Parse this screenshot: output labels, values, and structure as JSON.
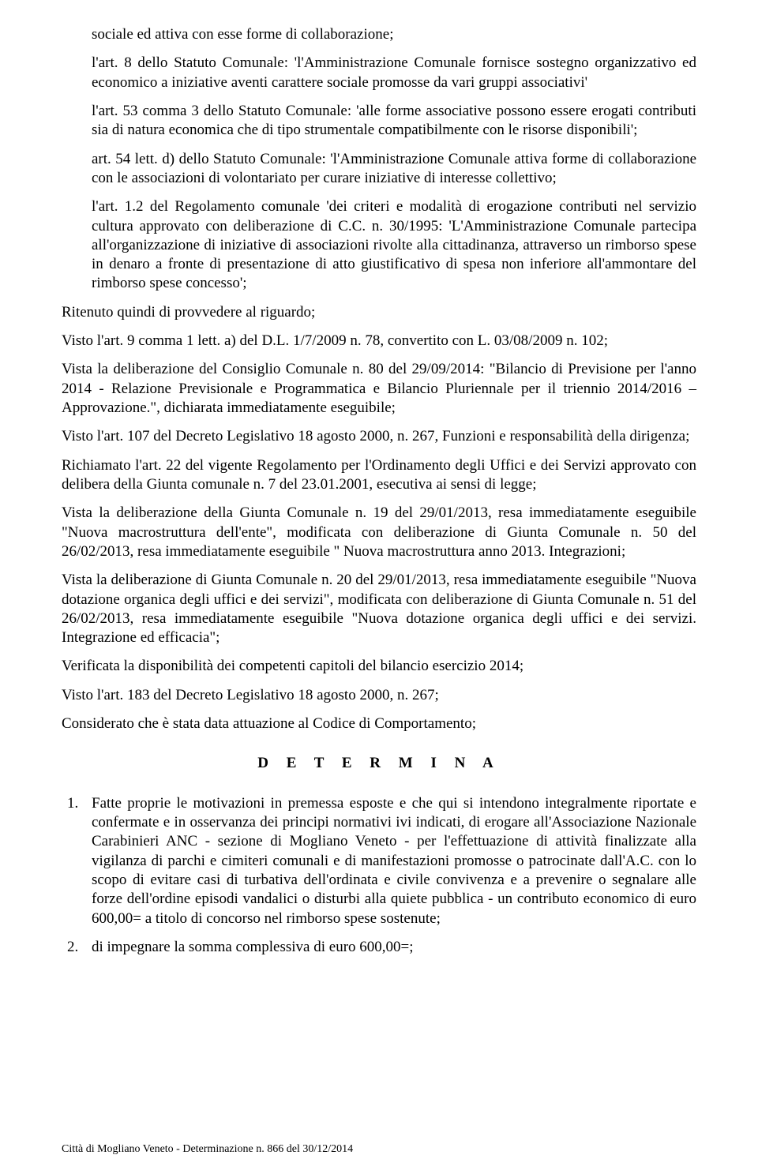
{
  "paragraphs": {
    "p1": "sociale ed attiva con esse forme di collaborazione;",
    "p2": "l'art. 8 dello Statuto Comunale: 'l'Amministrazione Comunale fornisce sostegno organizzativo ed economico a iniziative aventi carattere sociale promosse da vari gruppi associativi'",
    "p3": "l'art. 53 comma 3 dello Statuto Comunale: 'alle forme associative possono essere erogati contributi sia di natura economica che di tipo strumentale compatibilmente con le risorse disponibili';",
    "p4": "art. 54 lett. d)  dello Statuto Comunale: 'l'Amministrazione Comunale attiva forme di collaborazione con le associazioni di volontariato per curare iniziative di interesse collettivo;",
    "p5": "l'art. 1.2 del Regolamento comunale 'dei criteri e modalità di erogazione contributi nel servizio cultura approvato con deliberazione di C.C. n. 30/1995: 'L'Amministrazione Comunale partecipa all'organizzazione di iniziative di associazioni rivolte alla cittadinanza, attraverso un rimborso spese in denaro a fronte di presentazione di atto giustificativo di spesa non inferiore all'ammontare del rimborso spese concesso';",
    "p6": "Ritenuto quindi di provvedere al riguardo;",
    "p7": "Visto l'art. 9 comma 1 lett. a) del D.L. 1/7/2009 n. 78, convertito con L. 03/08/2009 n. 102;",
    "p8": "Vista la deliberazione del Consiglio Comunale n. 80 del 29/09/2014: \"Bilancio di Previsione per l'anno 2014 - Relazione Previsionale e Programmatica e  Bilancio Pluriennale per il triennio 2014/2016 – Approvazione.\", dichiarata immediatamente eseguibile;",
    "p9": "Visto l'art. 107 del Decreto Legislativo 18 agosto 2000, n. 267, Funzioni e responsabilità della dirigenza;",
    "p10": "Richiamato l'art. 22 del vigente Regolamento per l'Ordinamento degli Uffici e dei Servizi approvato con delibera della Giunta comunale n. 7 del 23.01.2001, esecutiva ai sensi di legge;",
    "p11": "Vista la deliberazione della Giunta Comunale n. 19 del 29/01/2013, resa immediatamente eseguibile \"Nuova macrostruttura dell'ente\", modificata con deliberazione di Giunta Comunale n. 50 del 26/02/2013, resa immediatamente eseguibile \" Nuova macrostruttura anno 2013. Integrazioni;",
    "p12": "Vista la deliberazione di Giunta Comunale n. 20 del 29/01/2013, resa immediatamente eseguibile \"Nuova dotazione organica degli uffici e dei servizi\", modificata con deliberazione di Giunta Comunale n. 51 del 26/02/2013, resa immediatamente eseguibile \"Nuova dotazione organica degli uffici e dei servizi. Integrazione ed efficacia\";",
    "p13": "Verificata la disponibilità dei competenti capitoli del bilancio esercizio 2014;",
    "p14": "Visto l'art. 183 del Decreto Legislativo 18 agosto 2000, n. 267;",
    "p15": "Considerato che è stata data attuazione al Codice di Comportamento;"
  },
  "heading": "D E T E R M I N A",
  "list": {
    "item1": "Fatte proprie le motivazioni in premessa esposte e che qui si intendono integralmente riportate e confermate e in osservanza dei principi normativi ivi indicati, di erogare all'Associazione Nazionale Carabinieri ANC - sezione di Mogliano Veneto - per l'effettuazione di attività finalizzate alla vigilanza di parchi e cimiteri comunali e di manifestazioni promosse o patrocinate dall'A.C. con lo scopo di evitare casi di turbativa dell'ordinata e civile convivenza e a prevenire o segnalare alle forze dell'ordine episodi vandalici o disturbi alla quiete pubblica - un contributo economico di euro 600,00= a titolo di concorso nel rimborso spese sostenute;",
    "item2": "di impegnare la somma complessiva di euro 600,00=;"
  },
  "footer": "Città di Mogliano Veneto - Determinazione n. 866 del 30/12/2014"
}
